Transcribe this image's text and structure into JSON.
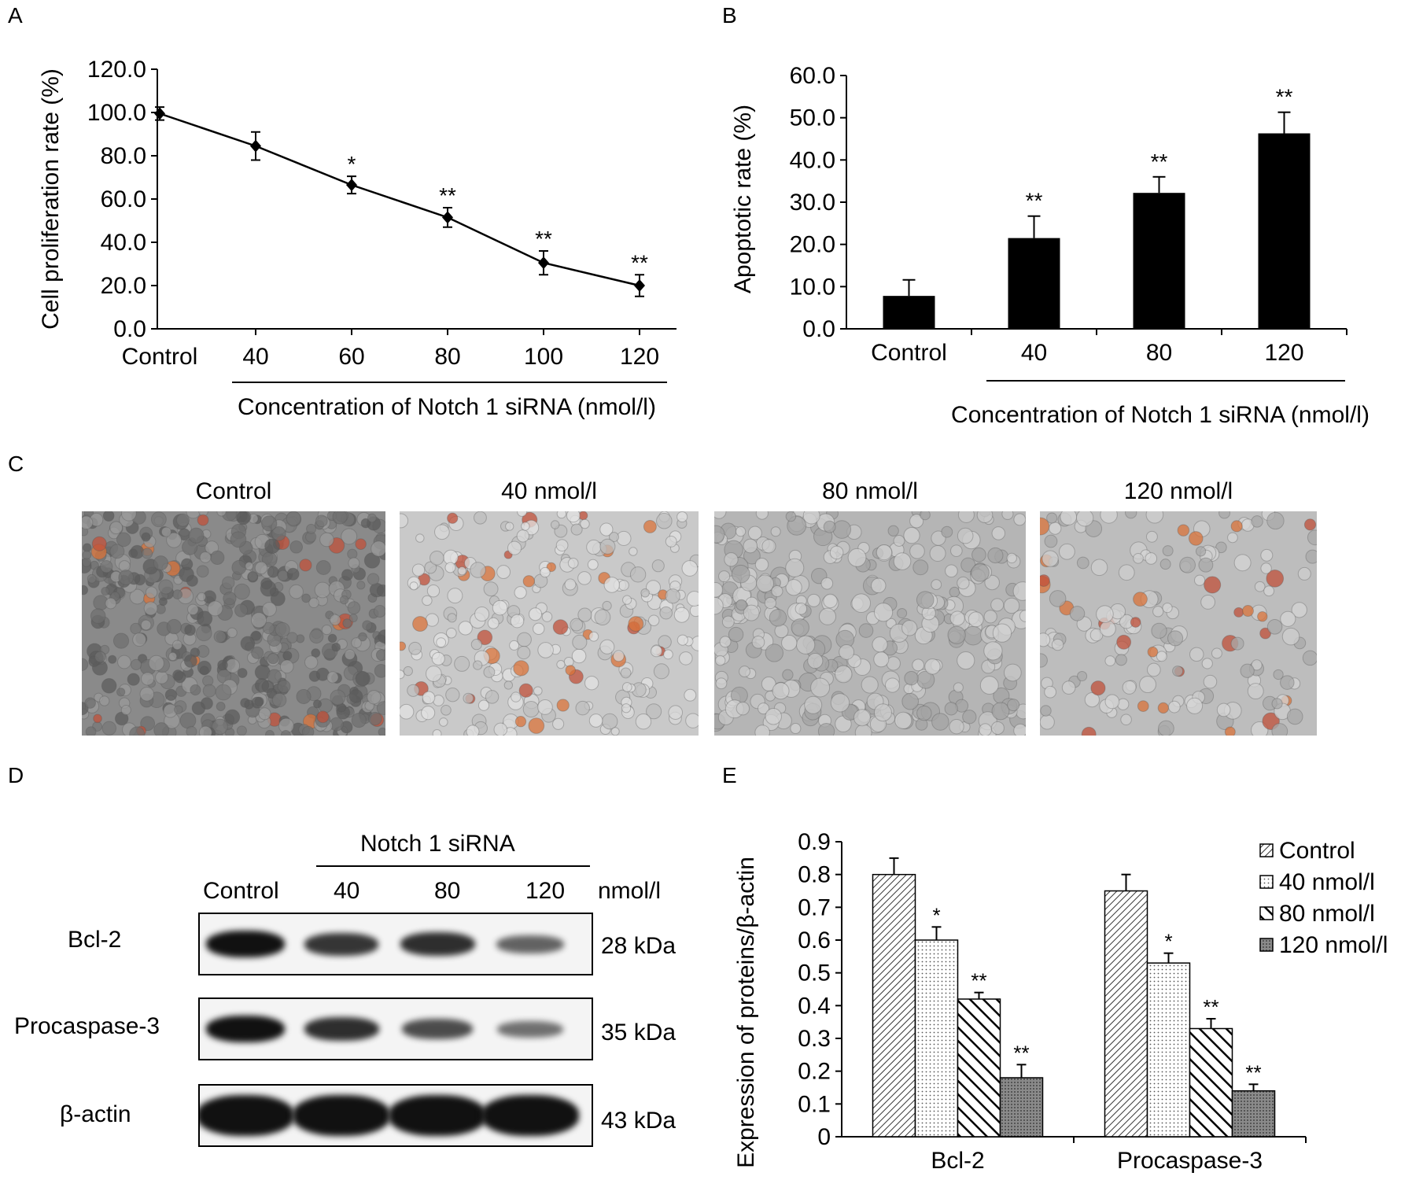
{
  "panels": {
    "A": {
      "letter": "A",
      "chart_data": {
        "type": "line",
        "categories": [
          "Control",
          "40",
          "60",
          "80",
          "100",
          "120"
        ],
        "values": [
          99.5,
          84.5,
          66.5,
          51.5,
          30.5,
          20.0
        ],
        "errors": [
          3.0,
          6.5,
          4.0,
          4.5,
          5.5,
          5.0
        ],
        "significance": [
          "",
          "",
          "*",
          "**",
          "**",
          "**"
        ],
        "yticks": [
          "0.0",
          "20.0",
          "40.0",
          "60.0",
          "80.0",
          "100.0",
          "120.0"
        ],
        "ylim": [
          0,
          120
        ],
        "ylabel": "Cell proliferation rate (%)",
        "xlabel": "Concentration of Notch 1 siRNA (nmol/l)",
        "grid": false
      }
    },
    "B": {
      "letter": "B",
      "chart_data": {
        "type": "bar",
        "categories": [
          "Control",
          "40",
          "80",
          "120"
        ],
        "values": [
          7.8,
          21.5,
          32.2,
          46.3
        ],
        "errors": [
          3.8,
          5.2,
          3.8,
          5.0
        ],
        "significance": [
          "",
          "**",
          "**",
          "**"
        ],
        "yticks": [
          "0.0",
          "10.0",
          "20.0",
          "30.0",
          "40.0",
          "50.0",
          "60.0"
        ],
        "ylim": [
          0,
          60
        ],
        "ylabel": "Apoptotic rate (%)",
        "xlabel": "Concentration of Notch 1 siRNA (nmol/l)",
        "grid": false
      }
    },
    "C": {
      "letter": "C",
      "images": [
        {
          "title": "Control"
        },
        {
          "title": "40 nmol/l"
        },
        {
          "title": "80 nmol/l"
        },
        {
          "title": "120 nmol/l"
        }
      ]
    },
    "D": {
      "letter": "D",
      "group_label": "Notch 1 siRNA",
      "unit": "nmol/l",
      "lanes": [
        "Control",
        "40",
        "80",
        "120"
      ],
      "rows": [
        {
          "name": "Bcl-2",
          "kda": "28 kDa",
          "intensity": [
            1.0,
            0.75,
            0.8,
            0.45
          ]
        },
        {
          "name": "Procaspase-3",
          "kda": "35 kDa",
          "intensity": [
            1.0,
            0.8,
            0.6,
            0.35
          ]
        },
        {
          "name": "β-actin",
          "kda": "43 kDa",
          "intensity": [
            1.0,
            1.0,
            1.0,
            1.0
          ]
        }
      ]
    },
    "E": {
      "letter": "E",
      "chart_data": {
        "type": "bar",
        "categories": [
          "Bcl-2",
          "Procaspase-3"
        ],
        "series": [
          {
            "name": "Control",
            "values": [
              0.8,
              0.75
            ],
            "errors": [
              0.05,
              0.05
            ],
            "significance": [
              "",
              ""
            ],
            "pattern": "diag-fine"
          },
          {
            "name": "40 nmol/l",
            "values": [
              0.6,
              0.53
            ],
            "errors": [
              0.04,
              0.03
            ],
            "significance": [
              "*",
              "*"
            ],
            "pattern": "dots"
          },
          {
            "name": "80 nmol/l",
            "values": [
              0.42,
              0.33
            ],
            "errors": [
              0.02,
              0.03
            ],
            "significance": [
              "**",
              "**"
            ],
            "pattern": "diag-bold"
          },
          {
            "name": "120 nmol/l",
            "values": [
              0.18,
              0.14
            ],
            "errors": [
              0.04,
              0.02
            ],
            "significance": [
              "**",
              "**"
            ],
            "pattern": "crosshatch"
          }
        ],
        "yticks": [
          "0",
          "0.1",
          "0.2",
          "0.3",
          "0.4",
          "0.5",
          "0.6",
          "0.7",
          "0.8",
          "0.9"
        ],
        "ylim": [
          0,
          0.9
        ],
        "ylabel": "Expression of proteins/β-actin",
        "legend": "right",
        "grid": false
      }
    }
  }
}
